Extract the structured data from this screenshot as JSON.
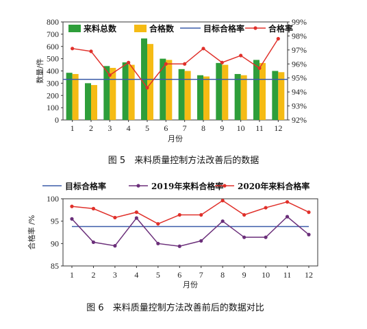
{
  "chart_data": [
    {
      "type": "bar",
      "caption": "图 5　来料质量控制方法改善后的数据",
      "categories": [
        "1",
        "2",
        "3",
        "4",
        "5",
        "6",
        "7",
        "8",
        "9",
        "10",
        "11",
        "12"
      ],
      "xlabel": "月份",
      "ylabel": "数量/件",
      "ylim": [
        0,
        800
      ],
      "yticks": [
        "0",
        "100",
        "200",
        "300",
        "400",
        "500",
        "600",
        "700",
        "800"
      ],
      "y2lim": [
        92,
        99
      ],
      "y2ticks": [
        "92%",
        "93%",
        "94%",
        "95%",
        "96%",
        "97%",
        "98%",
        "99%"
      ],
      "series": [
        {
          "name": "来料总数",
          "kind": "bar",
          "color": "#2e9e3a",
          "values": [
            385,
            300,
            440,
            470,
            665,
            500,
            415,
            365,
            465,
            375,
            490,
            400
          ]
        },
        {
          "name": "合格数",
          "kind": "bar",
          "color": "#f5bb14",
          "values": [
            375,
            285,
            425,
            450,
            620,
            490,
            400,
            355,
            450,
            365,
            465,
            390
          ]
        },
        {
          "name": "目标合格率",
          "kind": "line",
          "color": "#3a5ba8",
          "axis": "right",
          "values": [
            94.9,
            94.9,
            94.9,
            94.9,
            94.9,
            94.9,
            94.9,
            94.9,
            94.9,
            94.9,
            94.9,
            94.9
          ]
        },
        {
          "name": "合格率",
          "kind": "line",
          "color": "#e0302a",
          "axis": "right",
          "values": [
            97.1,
            96.9,
            95.2,
            96.1,
            94.3,
            96.0,
            96.0,
            97.1,
            96.1,
            96.6,
            95.7,
            97.8
          ]
        }
      ]
    },
    {
      "type": "line",
      "caption": "图 6　来料质量控制方法改善前后的数据对比",
      "categories": [
        "1",
        "2",
        "3",
        "4",
        "5",
        "6",
        "7",
        "8",
        "9",
        "10",
        "11",
        "12"
      ],
      "xlabel": "月份",
      "ylabel": "合格率 /%",
      "ylim": [
        85,
        100
      ],
      "yticks": [
        "85",
        "90",
        "95",
        "100"
      ],
      "series": [
        {
          "name": "目标合格率",
          "color": "#3a5ba8",
          "marker": false,
          "values": [
            93.8,
            93.8,
            93.8,
            93.8,
            93.8,
            93.8,
            93.8,
            93.8,
            93.8,
            93.8,
            93.8,
            93.8
          ]
        },
        {
          "name": "2019年来料合格率",
          "color": "#6b2f7a",
          "marker": true,
          "values": [
            95.5,
            90.3,
            89.5,
            95.7,
            90.0,
            89.4,
            90.6,
            95.0,
            91.4,
            91.4,
            96.0,
            92.0
          ]
        },
        {
          "name": "2020年来料合格率",
          "color": "#e0302a",
          "marker": true,
          "values": [
            98.3,
            97.8,
            95.8,
            97.0,
            94.4,
            96.4,
            96.4,
            99.6,
            96.4,
            98.0,
            99.3,
            97.0
          ]
        }
      ]
    }
  ]
}
